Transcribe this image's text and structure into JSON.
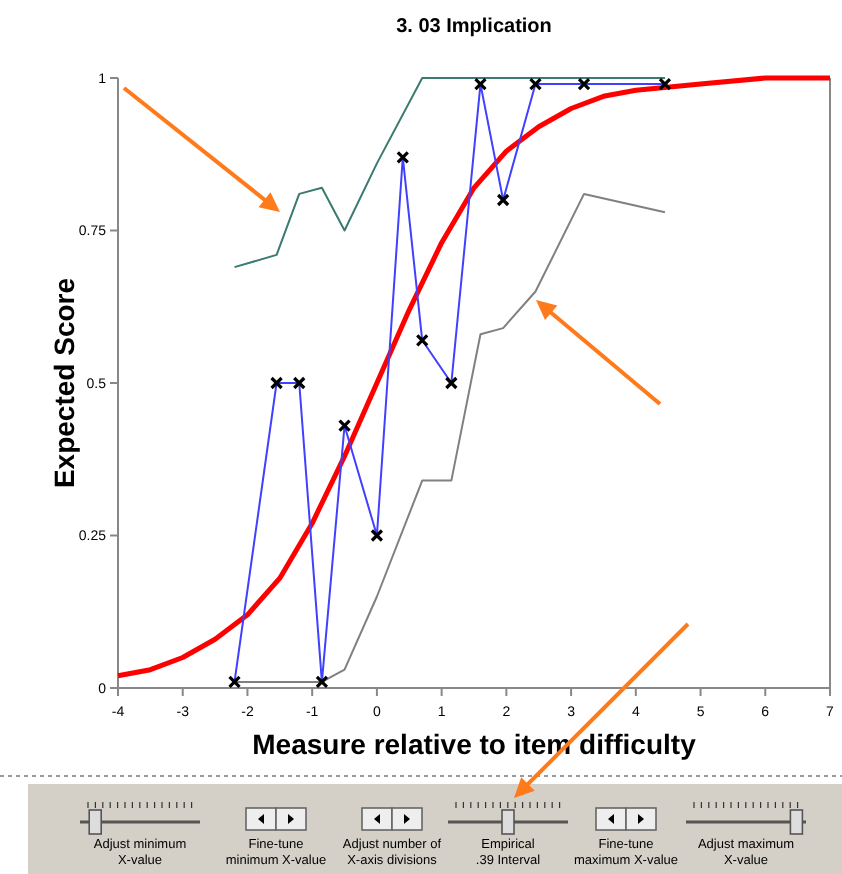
{
  "chart_data": {
    "type": "line",
    "title": "3. 03 Implication",
    "xlabel": "Measure relative to item difficulty",
    "ylabel": "Expected Score",
    "xlim": [
      -4,
      7
    ],
    "xticks": [
      -4,
      -3,
      -2,
      -1,
      0,
      1,
      2,
      3,
      4,
      5,
      6,
      7
    ],
    "ylim": [
      0,
      1
    ],
    "yticks": [
      0,
      0.25,
      0.5,
      0.75,
      1
    ],
    "series": [
      {
        "color": "#3a7a70",
        "marker": "none",
        "x": [
          -2.2,
          -1.55,
          -1.2,
          -0.85,
          -0.5,
          0,
          0.7,
          1.15,
          1.6,
          1.95,
          2.45,
          3.2,
          4.45
        ],
        "values": [
          0.69,
          0.71,
          0.81,
          0.82,
          0.75,
          0.86,
          1,
          1,
          1,
          1,
          1,
          1,
          1
        ]
      },
      {
        "color": "#808080",
        "marker": "none",
        "x": [
          -2.2,
          -1.55,
          -1.2,
          -0.85,
          -0.5,
          0,
          0.7,
          1.15,
          1.6,
          1.95,
          2.45,
          3.2,
          4.45
        ],
        "values": [
          0.01,
          0.01,
          0.01,
          0.01,
          0.03,
          0.15,
          0.34,
          0.34,
          0.58,
          0.59,
          0.65,
          0.81,
          0.78
        ]
      },
      {
        "color": "#ff0000",
        "marker": "none",
        "x": [
          -4,
          -3.5,
          -3,
          -2.5,
          -2,
          -1.5,
          -1,
          -0.5,
          0,
          0.5,
          1,
          1.5,
          2,
          2.5,
          3,
          3.5,
          4,
          5,
          6,
          7
        ],
        "values": [
          0.02,
          0.03,
          0.05,
          0.08,
          0.12,
          0.18,
          0.27,
          0.38,
          0.5,
          0.62,
          0.73,
          0.82,
          0.88,
          0.92,
          0.95,
          0.97,
          0.98,
          0.99,
          1,
          1
        ]
      },
      {
        "color": "#4040ff",
        "marker": "cross",
        "x": [
          -2.2,
          -1.55,
          -1.2,
          -0.85,
          -0.5,
          0,
          0.4,
          0.7,
          1.15,
          1.6,
          1.95,
          2.45,
          3.2,
          4.45
        ],
        "values": [
          0.01,
          0.5,
          0.5,
          0.01,
          0.43,
          0.25,
          0.87,
          0.57,
          0.5,
          0.99,
          0.8,
          0.99,
          0.99,
          0.99
        ]
      }
    ],
    "annotations": [
      "Adjust minimum\nX-value",
      "Fine-tune\nminimum X-value",
      "Adjust number of\nX-axis divisions",
      "Empirical\n.39 Interval",
      "Fine-tune\nmaximum X-value",
      "Adjust maximum\nX-value"
    ]
  }
}
